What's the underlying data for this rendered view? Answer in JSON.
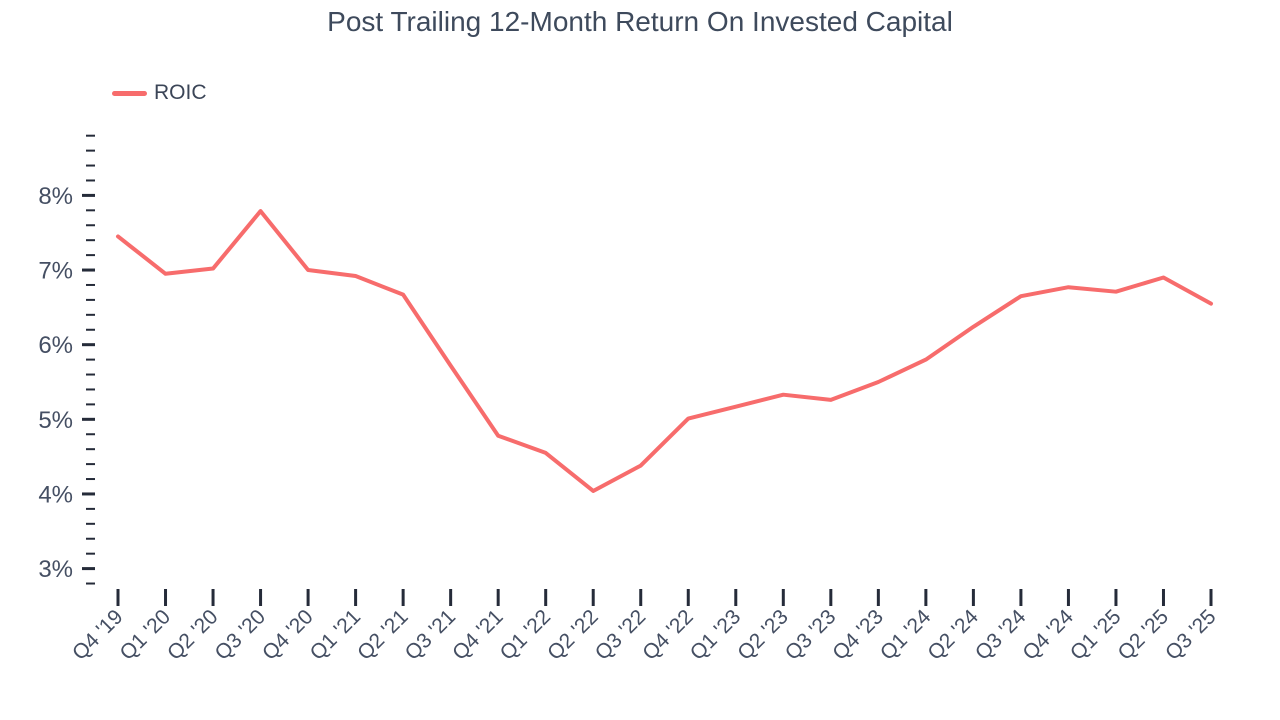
{
  "title": "Post Trailing 12-Month Return On Invested Capital",
  "legend": {
    "label": "ROIC"
  },
  "colors": {
    "line": "#f76c6c",
    "title_text": "#3e4a5c",
    "axis_label_text": "#454f63",
    "tick_mark": "#252b39"
  },
  "chart_data": {
    "type": "line",
    "title": "Post Trailing 12-Month Return On Invested Capital",
    "xlabel": "",
    "ylabel": "",
    "grid": false,
    "legend_position": "top-left",
    "legend_entries": [
      "ROIC"
    ],
    "x_tick_label_rotation": 45,
    "categories": [
      "Q4 '19",
      "Q1 '20",
      "Q2 '20",
      "Q3 '20",
      "Q4 '20",
      "Q1 '21",
      "Q2 '21",
      "Q3 '21",
      "Q4 '21",
      "Q1 '22",
      "Q2 '22",
      "Q3 '22",
      "Q4 '22",
      "Q1 '23",
      "Q2 '23",
      "Q3 '23",
      "Q4 '23",
      "Q1 '24",
      "Q2 '24",
      "Q3 '24",
      "Q4 '24",
      "Q1 '25",
      "Q2 '25",
      "Q3 '25"
    ],
    "series": [
      {
        "name": "ROIC",
        "color": "#f76c6c",
        "values": [
          7.45,
          6.95,
          7.02,
          7.79,
          7.0,
          6.92,
          6.67,
          5.72,
          4.78,
          4.55,
          4.04,
          4.38,
          5.01,
          5.17,
          5.33,
          5.26,
          5.5,
          5.8,
          6.24,
          6.65,
          6.77,
          6.71,
          6.9,
          6.55
        ]
      }
    ],
    "y_axis": {
      "min": 2.8,
      "max": 8.8,
      "unit": "%",
      "major_tick_values": [
        3,
        4,
        5,
        6,
        7,
        8
      ],
      "major_tick_labels": [
        "3%",
        "4%",
        "5%",
        "6%",
        "7%",
        "8%"
      ],
      "minor_tick_step": 0.2
    }
  }
}
